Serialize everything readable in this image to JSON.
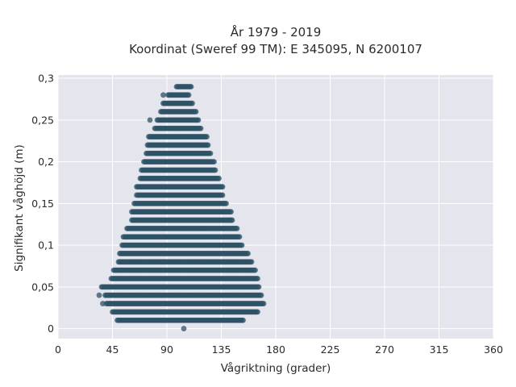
{
  "chart_data": {
    "type": "scatter",
    "title_lines": [
      "År 1979 - 2019",
      "Koordinat (Sweref 99 TM): E 345095, N 6200107"
    ],
    "xlabel": "Vågriktning (grader)",
    "ylabel": "Signifikant våghöjd (m)",
    "xlim": [
      0,
      360
    ],
    "ylim": [
      -0.012,
      0.304
    ],
    "x_ticks": [
      0,
      45,
      90,
      135,
      180,
      225,
      270,
      315,
      360
    ],
    "x_tick_labels": [
      "0",
      "45",
      "90",
      "135",
      "180",
      "225",
      "270",
      "315",
      "360"
    ],
    "y_ticks": [
      0,
      0.05,
      0.1,
      0.15,
      0.2,
      0.25,
      0.3
    ],
    "y_tick_labels": [
      "0",
      "0,05",
      "0,1",
      "0,15",
      "0,2",
      "0,25",
      "0,3"
    ],
    "grid": true,
    "marker_color": "#2e5266",
    "background_color": "#e5e5ee",
    "outliers": [
      {
        "x": 104,
        "y": 0.0
      },
      {
        "x": 34,
        "y": 0.04
      },
      {
        "x": 37,
        "y": 0.03
      },
      {
        "x": 87,
        "y": 0.28
      },
      {
        "x": 76,
        "y": 0.25
      },
      {
        "x": 148,
        "y": 0.12
      }
    ],
    "rows": [
      {
        "y": 0.01,
        "x_min": 49,
        "x_max": 153
      },
      {
        "y": 0.02,
        "x_min": 45,
        "x_max": 165
      },
      {
        "y": 0.03,
        "x_min": 40,
        "x_max": 170
      },
      {
        "y": 0.04,
        "x_min": 39,
        "x_max": 168
      },
      {
        "y": 0.05,
        "x_min": 36,
        "x_max": 166
      },
      {
        "y": 0.06,
        "x_min": 44,
        "x_max": 165
      },
      {
        "y": 0.07,
        "x_min": 46,
        "x_max": 163
      },
      {
        "y": 0.08,
        "x_min": 50,
        "x_max": 160
      },
      {
        "y": 0.09,
        "x_min": 51,
        "x_max": 157
      },
      {
        "y": 0.1,
        "x_min": 53,
        "x_max": 152
      },
      {
        "y": 0.11,
        "x_min": 54,
        "x_max": 150
      },
      {
        "y": 0.12,
        "x_min": 57,
        "x_max": 147
      },
      {
        "y": 0.13,
        "x_min": 61,
        "x_max": 144
      },
      {
        "y": 0.14,
        "x_min": 61,
        "x_max": 143
      },
      {
        "y": 0.15,
        "x_min": 63,
        "x_max": 139
      },
      {
        "y": 0.16,
        "x_min": 65,
        "x_max": 136
      },
      {
        "y": 0.17,
        "x_min": 65,
        "x_max": 136
      },
      {
        "y": 0.18,
        "x_min": 68,
        "x_max": 133
      },
      {
        "y": 0.19,
        "x_min": 69,
        "x_max": 130
      },
      {
        "y": 0.2,
        "x_min": 71,
        "x_max": 129
      },
      {
        "y": 0.21,
        "x_min": 73,
        "x_max": 126
      },
      {
        "y": 0.22,
        "x_min": 74,
        "x_max": 124
      },
      {
        "y": 0.23,
        "x_min": 75,
        "x_max": 123
      },
      {
        "y": 0.24,
        "x_min": 80,
        "x_max": 118
      },
      {
        "y": 0.25,
        "x_min": 82,
        "x_max": 116
      },
      {
        "y": 0.26,
        "x_min": 85,
        "x_max": 114
      },
      {
        "y": 0.27,
        "x_min": 87,
        "x_max": 111
      },
      {
        "y": 0.28,
        "x_min": 91,
        "x_max": 108
      },
      {
        "y": 0.29,
        "x_min": 98,
        "x_max": 110
      }
    ]
  }
}
